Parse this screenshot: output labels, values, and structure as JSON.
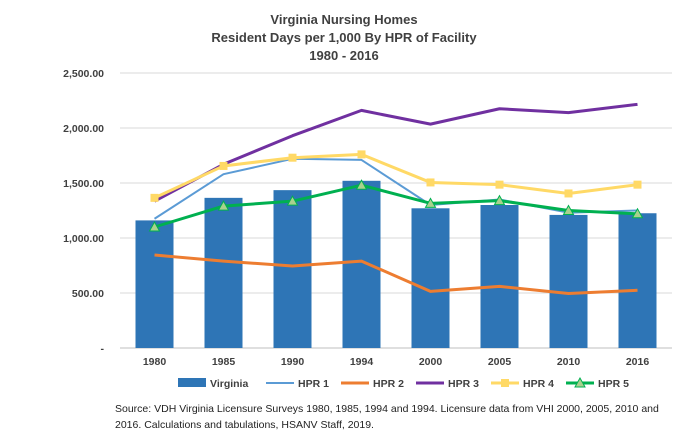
{
  "chart_data": {
    "type": "bar",
    "title": [
      "Virginia Nursing Homes",
      "Resident Days per 1,000 By HPR of Facility",
      "1980 - 2016"
    ],
    "categories": [
      "1980",
      "1985",
      "1990",
      "1994",
      "2000",
      "2005",
      "2010",
      "2016"
    ],
    "ylim": [
      0,
      2500
    ],
    "yticks": [
      0,
      500,
      1000,
      1500,
      2000,
      2500
    ],
    "ytick_labels": [
      "-",
      "500.00",
      "1,000.00",
      "1,500.00",
      "2,000.00",
      "2,500.00"
    ],
    "grid": true,
    "legend_position": "bottom",
    "bar_series": {
      "name": "Virginia",
      "color": "#2e75b6",
      "values": [
        1160,
        1365,
        1435,
        1520,
        1270,
        1300,
        1210,
        1225
      ]
    },
    "line_series": [
      {
        "name": "HPR 1",
        "color": "#5b9bd5",
        "marker": "none",
        "width": 2,
        "values": [
          1175,
          1580,
          1720,
          1710,
          1300,
          1350,
          1230,
          1250
        ]
      },
      {
        "name": "HPR 2",
        "color": "#ed7d31",
        "marker": "none",
        "width": 3,
        "values": [
          845,
          790,
          745,
          790,
          515,
          560,
          495,
          525
        ]
      },
      {
        "name": "HPR 3",
        "color": "#7030a0",
        "marker": "none",
        "width": 3,
        "values": [
          1335,
          1670,
          1930,
          2160,
          2035,
          2175,
          2140,
          2215
        ]
      },
      {
        "name": "HPR 4",
        "color": "#ffd966",
        "marker": "square",
        "width": 3,
        "values": [
          1365,
          1655,
          1730,
          1760,
          1505,
          1485,
          1405,
          1485
        ]
      },
      {
        "name": "HPR 5",
        "color": "#00b050",
        "marker": "triangle",
        "width": 3,
        "values": [
          1100,
          1290,
          1335,
          1480,
          1315,
          1340,
          1250,
          1220
        ]
      }
    ]
  },
  "source_text": "Source: VDH Virginia Licensure Surveys 1980, 1985, 1994 and 1994. Licensure data from VHI 2000, 2005, 2010 and 2016. Calculations and tabulations, HSANV Staff, 2019."
}
